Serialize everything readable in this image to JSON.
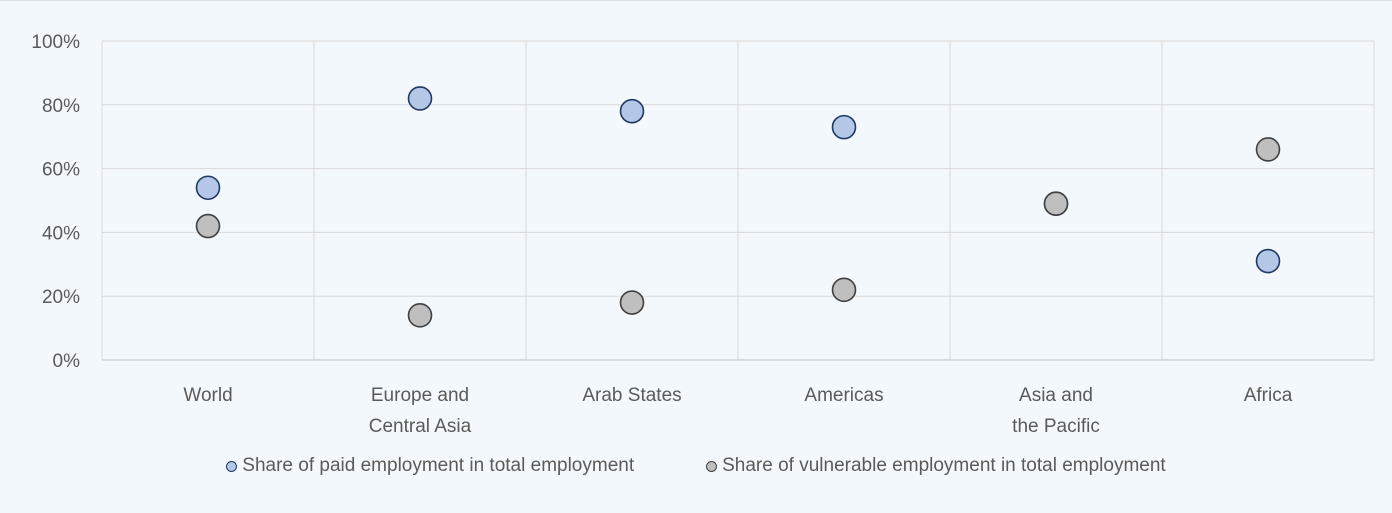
{
  "chart_data": {
    "type": "scatter",
    "categories": [
      [
        "World"
      ],
      [
        "Europe and",
        "Central Asia"
      ],
      [
        "Arab States"
      ],
      [
        "Americas"
      ],
      [
        "Asia and",
        "the Pacific"
      ],
      [
        "Africa"
      ]
    ],
    "series": [
      {
        "name": "Share of paid employment in total employment",
        "values": [
          54,
          82,
          78,
          73,
          49,
          31
        ],
        "fill": "#b4c7e7",
        "stroke": "#1f3864"
      },
      {
        "name": "Share of vulnerable employment in total employment",
        "values": [
          42,
          14,
          18,
          22,
          49,
          66
        ],
        "fill": "#bfbfbf",
        "stroke": "#404040"
      }
    ],
    "ylim": [
      0,
      100
    ],
    "yticks": [
      0,
      20,
      40,
      60,
      80,
      100
    ],
    "ytick_format": "{v}%",
    "title": "",
    "xlabel": "",
    "ylabel": "",
    "grid": true,
    "legend_position": "bottom"
  }
}
